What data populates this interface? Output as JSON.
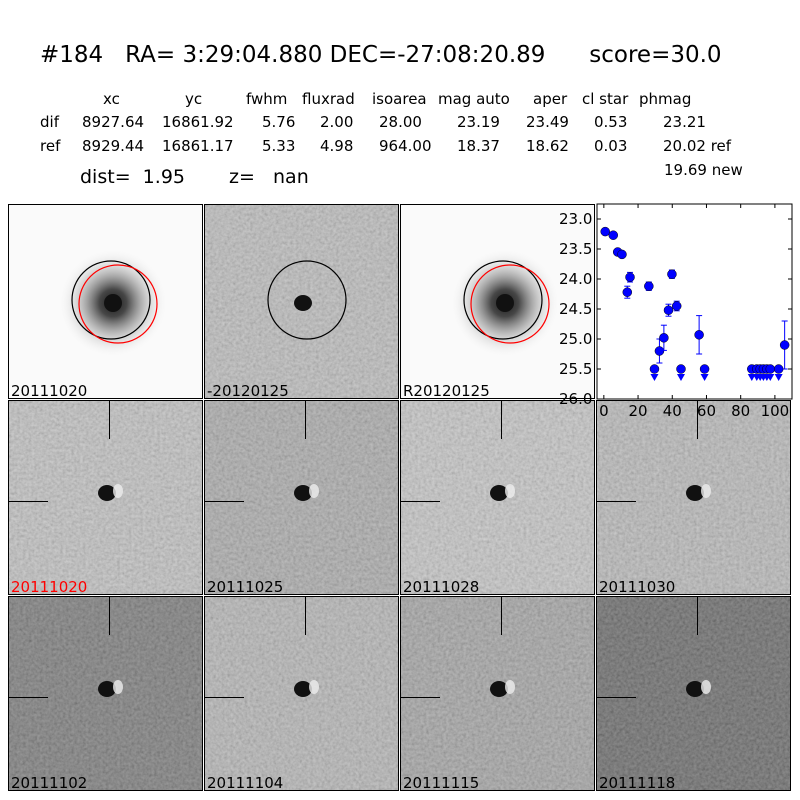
{
  "title": "#184   RA= 3:29:04.880 DEC=-27:08:20.89      score=30.0",
  "table": {
    "headers": [
      "xc",
      "yc",
      "fwhm",
      "fluxrad",
      "isoarea",
      "mag auto",
      "aper",
      "cl star",
      "phmag"
    ],
    "dif": {
      "label": "dif",
      "values": [
        "8927.64",
        "16861.92",
        "5.76",
        "2.00",
        "28.00",
        "23.19",
        "23.49",
        "0.53",
        "23.21"
      ]
    },
    "ref": {
      "label": "ref",
      "values": [
        "8929.44",
        "16861.17",
        "5.33",
        "4.98",
        "964.00",
        "18.37",
        "18.62",
        "0.03",
        "20.02 ref"
      ]
    },
    "new_phmag": "19.69 new",
    "dist": "dist=  1.95",
    "z": "z=   nan"
  },
  "stamps": [
    {
      "label": "20111020",
      "kind": "ref",
      "circles": true
    },
    {
      "label": "-20120125",
      "kind": "diff",
      "circles": true
    },
    {
      "label": "R20120125",
      "kind": "ref",
      "circles": true
    },
    {
      "label": "20111020",
      "kind": "cut",
      "label_color": "#ff0000"
    },
    {
      "label": "20111025",
      "kind": "cut"
    },
    {
      "label": "20111028",
      "kind": "cut"
    },
    {
      "label": "20111030",
      "kind": "cut"
    },
    {
      "label": "20111102",
      "kind": "cut"
    },
    {
      "label": "20111104",
      "kind": "cut"
    },
    {
      "label": "20111115",
      "kind": "cut"
    },
    {
      "label": "20111118",
      "kind": "cut"
    }
  ],
  "chart_data": {
    "type": "scatter",
    "xlim": [
      -4,
      110
    ],
    "ylim": [
      26.0,
      22.75
    ],
    "xticks": [
      0,
      20,
      40,
      60,
      80,
      100
    ],
    "yticks": [
      23.0,
      23.5,
      24.0,
      24.5,
      25.0,
      25.5,
      26.0
    ],
    "ytick_labels": [
      "23.0",
      "23.5",
      "24.0",
      "24.5",
      "25.0",
      "25.5",
      "26.0"
    ],
    "xtick_labels": [
      "0",
      "20",
      "40",
      "60",
      "80",
      "100"
    ],
    "color": "#0000ff",
    "detections": [
      {
        "x": 0.8,
        "y": 23.21,
        "err": 0.03
      },
      {
        "x": 5.5,
        "y": 23.27,
        "err": 0.03
      },
      {
        "x": 8.1,
        "y": 23.55,
        "err": 0.04
      },
      {
        "x": 10.6,
        "y": 23.59,
        "err": 0.04
      },
      {
        "x": 13.7,
        "y": 24.22,
        "err": 0.1
      },
      {
        "x": 15.3,
        "y": 23.97,
        "err": 0.08
      },
      {
        "x": 26.3,
        "y": 24.12,
        "err": 0.07
      },
      {
        "x": 32.5,
        "y": 25.2,
        "err": 0.2
      },
      {
        "x": 35.1,
        "y": 24.98,
        "err": 0.21
      },
      {
        "x": 37.8,
        "y": 24.52,
        "err": 0.1
      },
      {
        "x": 39.8,
        "y": 23.92,
        "err": 0.07
      },
      {
        "x": 42.6,
        "y": 24.45,
        "err": 0.08
      },
      {
        "x": 55.7,
        "y": 24.93,
        "err": 0.32
      },
      {
        "x": 105.7,
        "y": 25.1,
        "err": 0.4
      }
    ],
    "upper_limits": [
      {
        "x": 29.6,
        "y": 25.5
      },
      {
        "x": 45.1,
        "y": 25.5
      },
      {
        "x": 58.9,
        "y": 25.5
      },
      {
        "x": 86.5,
        "y": 25.5
      },
      {
        "x": 89.4,
        "y": 25.5
      },
      {
        "x": 91.4,
        "y": 25.5
      },
      {
        "x": 93.3,
        "y": 25.5
      },
      {
        "x": 95.3,
        "y": 25.5
      },
      {
        "x": 97.3,
        "y": 25.5
      },
      {
        "x": 102.2,
        "y": 25.5
      }
    ]
  }
}
